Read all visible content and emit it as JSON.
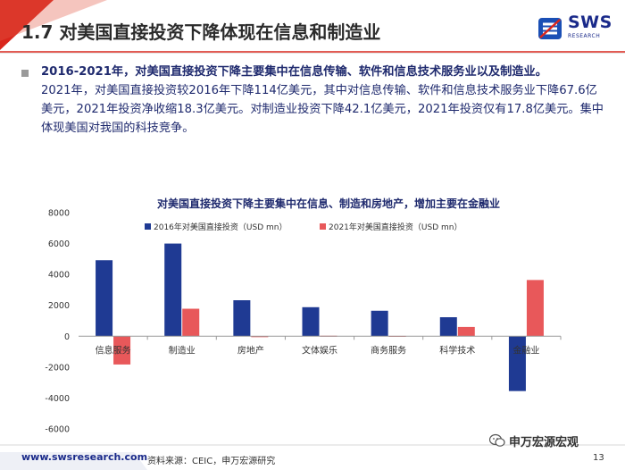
{
  "slide": {
    "title": "1.7 对美国直接投资下降体现在信息和制造业",
    "logo_text": "SWS",
    "logo_sub": "RESEARCH",
    "bullet_bold": "2016-2021年，对美国直接投资下降主要集中在信息传输、软件和信息技术服务业以及制造业。",
    "bullet_body": "2021年，对美国直接投资较2016年下降114亿美元，其中对信息传输、软件和信息技术服务业下降67.6亿美元，2021年投资净收缩18.3亿美元。对制造业投资下降42.1亿美元，2021年投资仅有17.8亿美元。集中体现美国对我国的科技竞争。",
    "footer_url": "www.swsresearch.com",
    "footer_source": "资料来源：CEIC，申万宏源研究",
    "wechat": "申万宏源宏观",
    "page_number": "13"
  },
  "colors": {
    "series_2016": "#1f3a93",
    "series_2021": "#e8585a",
    "header_red": "#d9261c",
    "brand_blue": "#1a2a8a"
  },
  "chart_data": {
    "type": "bar",
    "title": "对美国直接投资下降主要集中在信息、制造和房地产，增加主要在金融业",
    "categories": [
      "信息服务",
      "制造业",
      "房地产",
      "文体娱乐",
      "商务服务",
      "科学技术",
      "金融业"
    ],
    "series": [
      {
        "name": "2016年对美国直接投资（USD mn）",
        "values": [
          4920,
          6000,
          2330,
          1880,
          1650,
          1230,
          -3550
        ]
      },
      {
        "name": "2021年对美国直接投资（USD mn）",
        "values": [
          -1830,
          1780,
          -60,
          30,
          20,
          600,
          3640
        ]
      }
    ],
    "ylim": [
      -6000,
      8000
    ],
    "yticks": [
      8000,
      6000,
      4000,
      2000,
      0,
      -2000,
      -4000,
      -6000
    ],
    "xlabel": "",
    "ylabel": "",
    "legend": "top"
  }
}
